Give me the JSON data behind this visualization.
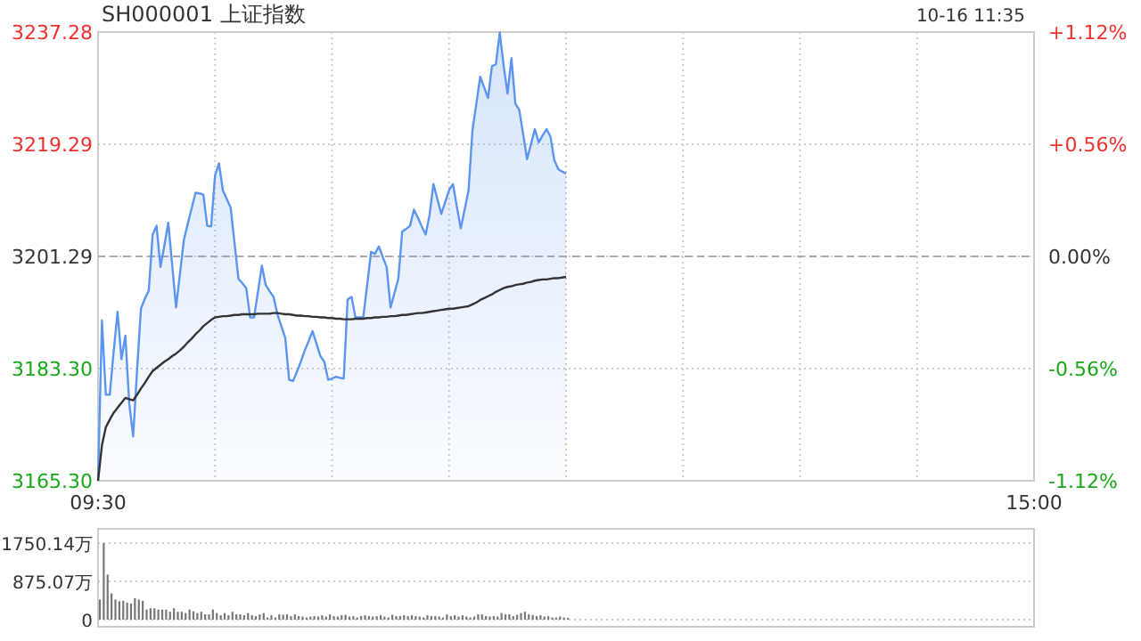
{
  "chart_data": [
    {
      "type": "area",
      "title": "SH000001 上证指数",
      "annotations": [
        "10-16 11:35"
      ],
      "grid": true,
      "categories": [
        "09:30",
        null,
        null,
        null,
        null,
        null,
        null,
        null,
        null,
        null,
        null,
        null,
        null,
        null,
        null,
        null,
        null,
        null,
        null,
        null,
        null,
        null,
        null,
        null,
        null,
        null,
        null,
        null,
        null,
        null,
        null,
        null,
        null,
        null,
        null,
        null,
        null,
        null,
        null,
        null,
        null,
        null,
        null,
        null,
        null,
        null,
        null,
        null,
        null,
        null,
        null,
        null,
        null,
        null,
        null,
        null,
        null,
        null,
        null,
        null,
        null,
        null,
        null,
        null,
        null,
        null,
        null,
        null,
        null,
        null,
        null,
        null,
        null,
        null,
        null,
        null,
        null,
        null,
        null,
        null,
        null,
        null,
        null,
        null,
        null,
        null,
        null,
        null,
        null,
        null,
        null,
        null,
        null,
        null,
        null,
        null,
        null,
        null,
        null,
        null,
        null,
        null,
        null,
        null,
        null,
        null,
        null,
        null,
        null,
        null,
        null,
        null,
        null,
        null,
        null,
        null,
        null,
        null,
        null,
        null,
        null,
        null,
        null,
        null,
        null,
        null,
        null,
        null,
        null,
        null,
        null,
        null,
        null,
        null,
        null,
        null,
        null,
        null,
        null,
        null,
        null,
        null,
        null,
        null,
        null,
        null,
        null,
        null,
        null,
        null,
        null,
        null,
        null,
        null,
        null,
        null,
        null,
        null,
        null,
        null,
        null,
        null,
        null,
        null,
        null,
        null,
        null,
        null,
        null,
        null,
        null,
        null,
        null,
        null,
        null,
        null,
        null,
        null,
        null,
        null,
        null,
        null,
        null,
        null,
        null,
        null,
        null,
        null,
        null,
        null,
        null,
        null,
        null,
        null,
        null,
        null,
        null,
        null,
        null,
        null,
        null,
        null,
        null,
        null,
        null,
        null,
        null,
        null,
        null,
        null,
        null,
        null,
        null,
        null,
        null,
        null,
        null,
        null,
        null,
        null,
        null,
        null,
        null,
        null,
        null,
        null,
        null,
        null,
        null,
        null,
        null,
        null,
        null,
        null,
        null,
        null,
        null,
        null,
        null,
        null,
        "15:00"
      ],
      "series": [
        {
          "color": "#5b95f0",
          "values": [
            3165.3,
            3191.0,
            3179.1,
            3179.1,
            3186,
            3192.4,
            3184.8,
            3188.6,
            3177.7,
            3172.4,
            3183,
            3192.9,
            3194.5,
            3195.8,
            3204.8,
            3206.2,
            3199.6,
            3203,
            3206.7,
            3200,
            3193.1,
            3198.5,
            3203.9,
            3206.5,
            3209,
            3211.5,
            3211.4,
            3211.2,
            3206.2,
            3206.1,
            3214.3,
            3216.2,
            3211.9,
            3210.5,
            3209.1,
            3203.4,
            3197.7,
            3197,
            3196.2,
            3191.5,
            3191.5,
            3195.6,
            3199.8,
            3196.7,
            3195.7,
            3194.8,
            3192.0,
            3190.1,
            3188.2,
            3181.5,
            3181.3,
            3182.8,
            3184.4,
            3186.2,
            3187.7,
            3189.3,
            3187.3,
            3185.3,
            3184.4,
            3181.5,
            3181.7,
            3182.0,
            3181.8,
            3181.7,
            3194.4,
            3194.8,
            3191.5,
            3191.5,
            3191.5,
            3196.7,
            3202.0,
            3201.7,
            3202.9,
            3201.2,
            3199.6,
            3193.1,
            3195.4,
            3197.7,
            3205.3,
            3205.7,
            3206.2,
            3208.8,
            3207.5,
            3206.1,
            3204.8,
            3207.9,
            3212.9,
            3210.5,
            3208.1,
            3210,
            3211.9,
            3212.9,
            3209.3,
            3205.8,
            3208.8,
            3211.9,
            3221.5,
            3225.8,
            3230.1,
            3228.4,
            3226.7,
            3231.8,
            3232.1,
            3237.2,
            3231.9,
            3227.4,
            3233.1,
            3225.8,
            3224.8,
            3220.9,
            3216.9,
            3219.3,
            3221.7,
            3219.6,
            3220.7,
            3221.7,
            3220.5,
            3216.7,
            3215.3,
            3214.9,
            3214.6,
            null,
            null,
            null,
            null,
            null,
            null,
            null,
            null,
            null,
            null,
            null,
            null,
            null,
            null,
            null,
            null,
            null,
            null,
            null,
            null,
            null,
            null,
            null,
            null,
            null,
            null,
            null,
            null,
            null,
            null,
            null,
            null,
            null,
            null,
            null,
            null,
            null,
            null,
            null,
            null,
            null,
            null,
            null,
            null,
            null,
            null,
            null,
            null,
            null,
            null,
            null,
            null,
            null,
            null,
            null,
            null,
            null,
            null,
            null,
            null,
            null,
            null,
            null,
            null,
            null,
            null,
            null,
            null,
            null,
            null,
            null,
            null,
            null,
            null,
            null,
            null,
            null,
            null,
            null,
            null,
            null,
            null,
            null,
            null,
            null,
            null,
            null,
            null,
            null,
            null,
            null,
            null,
            null,
            null,
            null,
            null,
            null,
            null,
            null,
            null,
            null,
            null,
            null,
            null,
            null,
            null,
            null,
            null,
            null,
            null,
            null,
            null,
            null,
            null,
            null,
            null,
            null,
            null,
            null,
            null
          ]
        },
        {
          "type": "line",
          "color": "#333333",
          "values": [
            3165.3,
            3171,
            3173.9,
            3175.1,
            3176.2,
            3177,
            3177.8,
            3178.6,
            3178.4,
            3178.2,
            3179.1,
            3180.1,
            3181,
            3182,
            3182.9,
            3183.4,
            3183.9,
            3184.4,
            3184.8,
            3185.3,
            3185.7,
            3186.2,
            3186.8,
            3187.5,
            3188.1,
            3188.8,
            3189.4,
            3190.1,
            3190.6,
            3191.1,
            3191.5,
            3191.6,
            3191.7,
            3191.7,
            3191.8,
            3191.9,
            3191.9,
            3192.0,
            3192.0,
            3192.0,
            3192.0,
            3192.1,
            3192.1,
            3192.1,
            3192.1,
            3192.2,
            3192.2,
            3192.1,
            3192.0,
            3192.0,
            3191.9,
            3191.8,
            3191.8,
            3191.7,
            3191.7,
            3191.6,
            3191.6,
            3191.5,
            3191.5,
            3191.4,
            3191.4,
            3191.3,
            3191.3,
            3191.2,
            3191.2,
            3191.2,
            3191.3,
            3191.3,
            3191.3,
            3191.4,
            3191.4,
            3191.5,
            3191.5,
            3191.6,
            3191.6,
            3191.7,
            3191.7,
            3191.8,
            3191.9,
            3191.9,
            3192.0,
            3192.1,
            3192.2,
            3192.2,
            3192.3,
            3192.4,
            3192.5,
            3192.6,
            3192.7,
            3192.8,
            3192.9,
            3192.9,
            3193.0,
            3193.1,
            3193.2,
            3193.3,
            3193.6,
            3193.9,
            3194.3,
            3194.6,
            3194.9,
            3195.2,
            3195.6,
            3195.9,
            3196.2,
            3196.4,
            3196.5,
            3196.7,
            3196.8,
            3196.9,
            3197.1,
            3197.2,
            3197.4,
            3197.5,
            3197.6,
            3197.6,
            3197.7,
            3197.8,
            3197.8,
            3197.9,
            3198.0,
            null,
            null,
            null,
            null,
            null,
            null,
            null,
            null,
            null,
            null,
            null,
            null,
            null,
            null,
            null,
            null,
            null,
            null,
            null,
            null,
            null,
            null,
            null,
            null,
            null,
            null,
            null,
            null,
            null,
            null,
            null,
            null,
            null,
            null,
            null,
            null,
            null,
            null,
            null,
            null,
            null,
            null,
            null,
            null,
            null,
            null,
            null,
            null,
            null,
            null,
            null,
            null,
            null,
            null,
            null,
            null,
            null,
            null,
            null,
            null,
            null,
            null,
            null,
            null,
            null,
            null,
            null,
            null,
            null,
            null,
            null,
            null,
            null,
            null,
            null,
            null,
            null,
            null,
            null,
            null,
            null,
            null,
            null,
            null,
            null,
            null,
            null,
            null,
            null,
            null,
            null,
            null,
            null,
            null,
            null,
            null,
            null,
            null,
            null,
            null,
            null,
            null,
            null,
            null,
            null,
            null,
            null,
            null,
            null,
            null,
            null,
            null,
            null,
            null,
            null,
            null,
            null,
            null,
            null,
            null
          ]
        }
      ],
      "ylim": [
        3165.3,
        3237.28
      ],
      "yticks": [
        {
          "value": 3165.3,
          "label": "3165.30"
        },
        {
          "value": 3183.3,
          "label": "3183.30"
        },
        {
          "value": 3201.29,
          "label": "3201.29"
        },
        {
          "value": 3219.29,
          "label": "3219.29"
        },
        {
          "value": 3237.28,
          "label": "3237.28"
        }
      ],
      "y2lim": [
        -1.12,
        1.12
      ],
      "y2ticks": [
        {
          "value": -1.12,
          "label": "-1.12%"
        },
        {
          "value": -0.56,
          "label": "-0.56%"
        },
        {
          "value": 0,
          "label": "0.00%"
        },
        {
          "value": 0.56,
          "label": "+0.56%"
        },
        {
          "value": 1.12,
          "label": "+1.12%"
        }
      ],
      "ref_lines": [
        {
          "axis": "y",
          "value": 3201.29,
          "color": "#aaaaaa",
          "line_style": "dashed"
        }
      ]
    },
    {
      "type": "bar",
      "color": "#777777",
      "grid": "y",
      "tick_labels": "y",
      "categories": [
        null,
        null,
        null,
        null,
        null,
        null,
        null,
        null,
        null,
        null,
        null,
        null,
        null,
        null,
        null,
        null,
        null,
        null,
        null,
        null,
        null,
        null,
        null,
        null,
        null,
        null,
        null,
        null,
        null,
        null,
        null,
        null,
        null,
        null,
        null,
        null,
        null,
        null,
        null,
        null,
        null,
        null,
        null,
        null,
        null,
        null,
        null,
        null,
        null,
        null,
        null,
        null,
        null,
        null,
        null,
        null,
        null,
        null,
        null,
        null,
        null,
        null,
        null,
        null,
        null,
        null,
        null,
        null,
        null,
        null,
        null,
        null,
        null,
        null,
        null,
        null,
        null,
        null,
        null,
        null,
        null,
        null,
        null,
        null,
        null,
        null,
        null,
        null,
        null,
        null,
        null,
        null,
        null,
        null,
        null,
        null,
        null,
        null,
        null,
        null,
        null,
        null,
        null,
        null,
        null,
        null,
        null,
        null,
        null,
        null,
        null,
        null,
        null,
        null,
        null,
        null,
        null,
        null,
        null,
        null,
        null,
        null,
        null,
        null,
        null,
        null,
        null,
        null,
        null,
        null,
        null,
        null,
        null,
        null,
        null,
        null,
        null,
        null,
        null,
        null,
        null,
        null,
        null,
        null,
        null,
        null,
        null,
        null,
        null,
        null,
        null,
        null,
        null,
        null,
        null,
        null,
        null,
        null,
        null,
        null,
        null,
        null,
        null,
        null,
        null,
        null,
        null,
        null,
        null,
        null,
        null,
        null,
        null,
        null,
        null,
        null,
        null,
        null,
        null,
        null,
        null,
        null,
        null,
        null,
        null,
        null,
        null,
        null,
        null,
        null,
        null,
        null,
        null,
        null,
        null,
        null,
        null,
        null,
        null,
        null,
        null,
        null,
        null,
        null,
        null,
        null,
        null,
        null,
        null,
        null,
        null,
        null,
        null,
        null,
        null,
        null,
        null,
        null,
        null,
        null,
        null,
        null,
        null,
        null,
        null,
        null,
        null,
        null,
        null,
        null,
        null,
        null,
        null,
        null,
        null,
        null,
        null,
        null,
        null,
        null,
        null
      ],
      "values": [
        460,
        1750,
        1030,
        600,
        460,
        420,
        430,
        390,
        370,
        490,
        460,
        430,
        230,
        260,
        260,
        230,
        230,
        230,
        180,
        260,
        180,
        180,
        150,
        230,
        190,
        150,
        180,
        120,
        120,
        230,
        150,
        100,
        150,
        100,
        180,
        120,
        120,
        100,
        150,
        100,
        80,
        120,
        150,
        50,
        100,
        50,
        120,
        110,
        120,
        80,
        120,
        80,
        70,
        50,
        70,
        80,
        70,
        100,
        70,
        120,
        80,
        70,
        100,
        110,
        70,
        80,
        50,
        80,
        100,
        80,
        70,
        80,
        100,
        70,
        50,
        110,
        80,
        80,
        100,
        80,
        100,
        80,
        70,
        50,
        100,
        80,
        80,
        70,
        50,
        120,
        80,
        100,
        70,
        100,
        70,
        50,
        70,
        120,
        120,
        80,
        70,
        80,
        70,
        150,
        120,
        120,
        80,
        110,
        150,
        180,
        120,
        110,
        80,
        100,
        70,
        80,
        50,
        50,
        70,
        50,
        40,
        null,
        null,
        null,
        null,
        null,
        null,
        null,
        null,
        null,
        null,
        null,
        null,
        null,
        null,
        null,
        null,
        null,
        null,
        null,
        null,
        null,
        null,
        null,
        null,
        null,
        null,
        null,
        null,
        null,
        null,
        null,
        null,
        null,
        null,
        null,
        null,
        null,
        null,
        null,
        null,
        null,
        null,
        null,
        null,
        null,
        null,
        null,
        null,
        null,
        null,
        null,
        null,
        null,
        null,
        null,
        null,
        null,
        null,
        null,
        null,
        null,
        null,
        null,
        null,
        null,
        null,
        null,
        null,
        null,
        null,
        null,
        null,
        null,
        null,
        null,
        null,
        null,
        null,
        null,
        null,
        null,
        null,
        null,
        null,
        null,
        null,
        null,
        null,
        null,
        null,
        null,
        null,
        null,
        null,
        null,
        null,
        null,
        null,
        null,
        null,
        null,
        null,
        null,
        null,
        null,
        null,
        null,
        null,
        null,
        null,
        null,
        null,
        null,
        null,
        null,
        null,
        null,
        null,
        null,
        null
      ],
      "ylim": [
        0,
        1750.14
      ],
      "yticks": [
        {
          "value": 0,
          "label": "0"
        },
        {
          "value": 875.07,
          "label": "875.07万"
        },
        {
          "value": 1750.14,
          "label": "1750.14万"
        }
      ]
    }
  ]
}
